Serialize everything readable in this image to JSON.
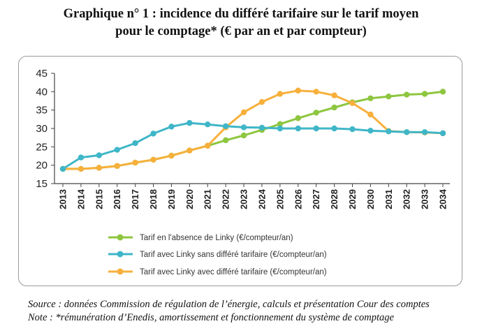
{
  "title": {
    "line1": "Graphique n° 1 : incidence du différé tarifaire sur le tarif moyen",
    "line2": "pour le comptage* (€ par an et par compteur)"
  },
  "notes": {
    "source": "Source : données Commission de régulation de l’énergie, calculs et présentation Cour des comptes",
    "note": "Note : *rémunération d’Enedis, amortissement et fonctionnement du système de comptage"
  },
  "chart_data": {
    "type": "line",
    "categories": [
      "2013",
      "2014",
      "2015",
      "2016",
      "2017",
      "2018",
      "2019",
      "2020",
      "2021",
      "2022",
      "2023",
      "2024",
      "2025",
      "2026",
      "2027",
      "2028",
      "2029",
      "2030",
      "2031",
      "2032",
      "2033",
      "2034"
    ],
    "ylim": [
      15,
      45
    ],
    "yticks": [
      15,
      20,
      25,
      30,
      35,
      40,
      45
    ],
    "grid": false,
    "legend_position": "bottom",
    "series": [
      {
        "name": "Tarif en l'absence de Linky (€/compteur/an)",
        "color": "#8dc63f",
        "values": [
          19,
          19,
          19.3,
          19.8,
          20.7,
          21.5,
          22.6,
          24,
          25.3,
          26.8,
          28.1,
          29.6,
          31.2,
          32.8,
          34.3,
          35.7,
          37.1,
          38.2,
          38.7,
          39.2,
          39.4,
          40
        ]
      },
      {
        "name": "Tarif avec Linky sans différé tarifaire (€/compteur/an)",
        "color": "#3fb6c8",
        "values": [
          19,
          22.1,
          22.7,
          24.2,
          26,
          28.6,
          30.5,
          31.5,
          31.1,
          30.6,
          30.3,
          30.2,
          30,
          30,
          30,
          30,
          29.8,
          29.4,
          29.2,
          29,
          29,
          28.7
        ]
      },
      {
        "name": "Tarif avec Linky avec différé tarifaire (€/compteur/an)",
        "color": "#f7b03c",
        "values": [
          19,
          19,
          19.3,
          19.8,
          20.7,
          21.5,
          22.6,
          24,
          25.3,
          30.3,
          34.4,
          37.2,
          39.4,
          40.3,
          40,
          39,
          36.9,
          33.8,
          29.3,
          29,
          28.9,
          28.7
        ]
      }
    ]
  }
}
